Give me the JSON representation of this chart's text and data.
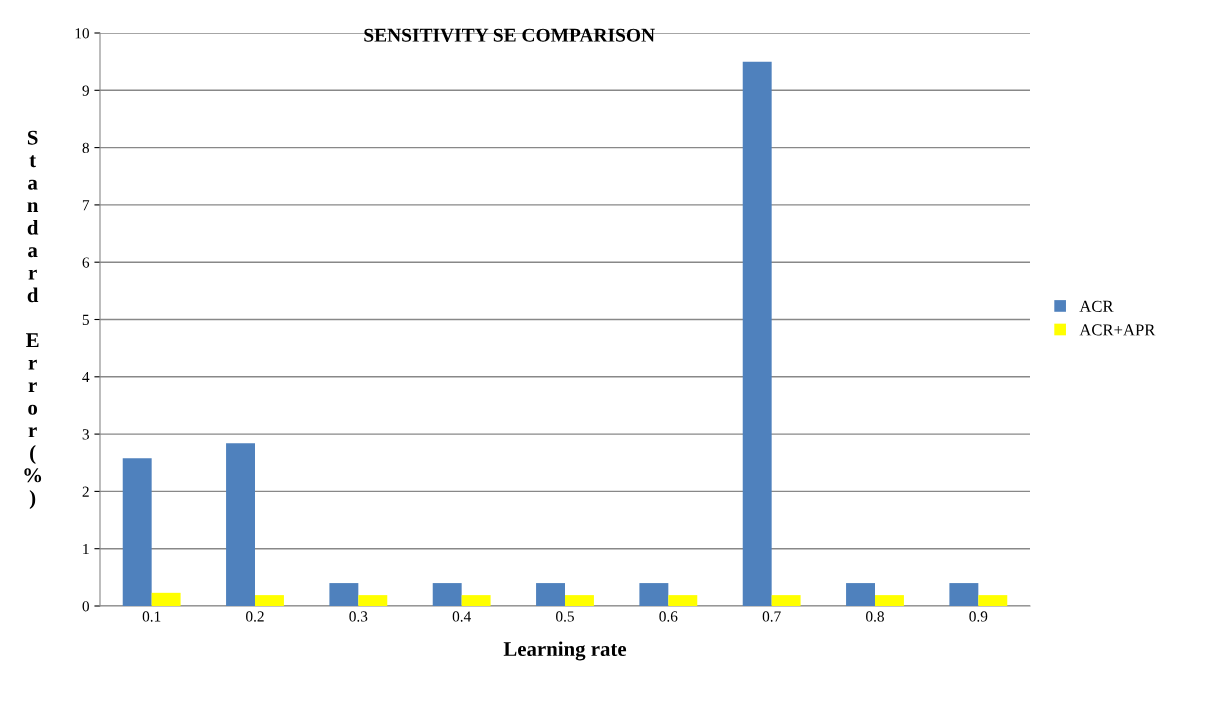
{
  "chart_data": {
    "type": "bar",
    "title": "SENSITIVITY SE COMPARISON",
    "xlabel": "Learning rate",
    "ylabel": "Standard Error(%)",
    "categories": [
      "0.1",
      "0.2",
      "0.3",
      "0.4",
      "0.5",
      "0.6",
      "0.7",
      "0.8",
      "0.9"
    ],
    "series": [
      {
        "name": "ACR",
        "color": "#4f81bd",
        "values": [
          2.58,
          2.84,
          0.4,
          0.4,
          0.4,
          0.4,
          9.5,
          0.4,
          0.4
        ]
      },
      {
        "name": "ACR+APR",
        "color": "#ffff00",
        "values": [
          0.23,
          0.19,
          0.19,
          0.19,
          0.19,
          0.19,
          0.19,
          0.19,
          0.19
        ]
      }
    ],
    "ylim": [
      0,
      10
    ],
    "yticks": [
      0,
      1,
      2,
      3,
      4,
      5,
      6,
      7,
      8,
      9,
      10
    ],
    "grid": "y",
    "legend": "right"
  }
}
